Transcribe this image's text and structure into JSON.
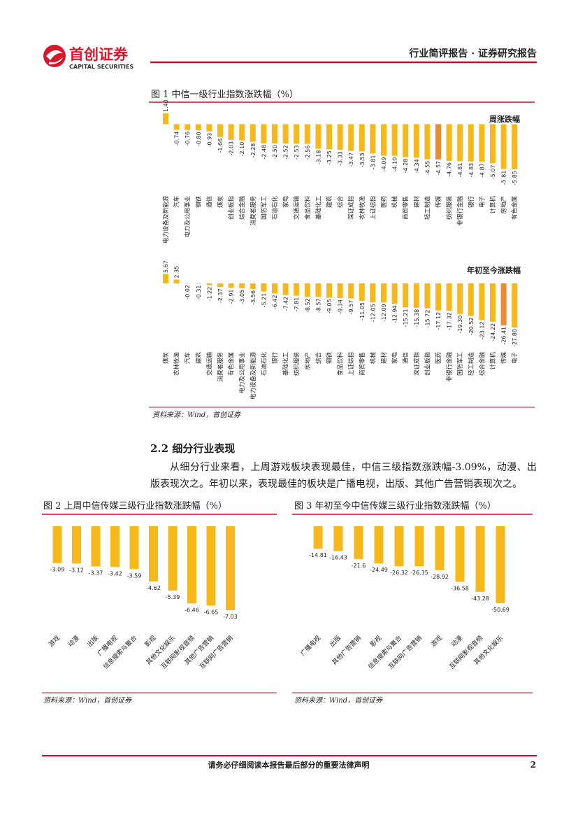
{
  "header": {
    "brand": "首创证券",
    "brand_en": "CAPITAL SECURITIES",
    "report_type": "行业简评报告 · 证券研究报告"
  },
  "figure1": {
    "title": "图 1 中信一级行业指数涨跌幅（%）",
    "source": "资料来源：Wind，首创证券"
  },
  "section": {
    "heading": "2.2  细分行业表现",
    "paragraph": "从细分行业来看，上周游戏板块表现最佳，中信三级指数涨跌幅-3.09%，动漫、出版表现次之。年初以来，表现最佳的板块是广播电视，出版、其他广告营销表现次之。"
  },
  "figure2": {
    "source": "资料来源：Wind，首创证券"
  },
  "figure3": {
    "source": "资料来源：Wind，首创证券"
  },
  "chart_data": [
    {
      "type": "bar",
      "categories": [
        "电力设备及新能源",
        "汽车",
        "电力及公用事业",
        "钢铁",
        "通信",
        "煤炭",
        "创业板指",
        "综合金融",
        "消费者服务",
        "国防军工",
        "石油石化",
        "家电",
        "交通运输",
        "食品饮料",
        "基础化工",
        "建筑",
        "综合",
        "深证成指",
        "农林牧渔",
        "上证综指",
        "医药",
        "机械",
        "商贸零售",
        "建材",
        "轻工制造",
        "传媒",
        "纺织服装",
        "非银行金融",
        "银行",
        "电子",
        "计算机",
        "房地产",
        "有色金属"
      ],
      "series": [
        {
          "name": "周涨跌幅",
          "color": "#f7b81c",
          "values": [
            1.4,
            -0.74,
            -0.76,
            -0.8,
            -0.93,
            -1.66,
            -2.03,
            -2.1,
            -2.28,
            -2.48,
            -2.5,
            -2.52,
            -2.53,
            -2.56,
            -3.18,
            -3.25,
            -3.33,
            -3.47,
            -3.53,
            -3.81,
            -4.09,
            -4.1,
            -4.28,
            -4.34,
            -4.55,
            -4.57,
            -4.76,
            -4.81,
            -4.83,
            -4.87,
            -5.07,
            -5.81,
            -5.85
          ],
          "value_labels": [
            "1.40",
            "-0.74",
            "-0.76",
            "-0.80",
            "-0.93",
            "-1.66",
            "-2.03",
            "-2.10",
            "-2.28",
            "-2.48",
            "-2.50",
            "-2.52",
            "-2.53",
            "-2.56",
            "-3.18",
            "-3.25",
            "-3.33",
            "-3.47",
            "-3.53",
            "-3.81",
            "-4.09",
            "-4.10",
            "-4.28",
            "-4.34",
            "-4.55",
            "-4.57",
            "-4.76",
            "-4.81",
            "-4.83",
            "-4.87",
            "-5.07",
            "-5.81",
            "-5.85"
          ]
        }
      ],
      "highlight": {
        "category": "传媒",
        "color": "#ef8a2e"
      }
    },
    {
      "type": "bar",
      "categories": [
        "煤炭",
        "农林牧渔",
        "汽车",
        "建筑",
        "交通运输",
        "消费者服务",
        "有色金属",
        "电力及公用事业",
        "电力设备及新能源",
        "石油石化",
        "银行",
        "基础化工",
        "纺织服装",
        "房地产",
        "综合",
        "钢铁",
        "食品饮料",
        "上证综指",
        "商贸零售",
        "机械",
        "建材",
        "家电",
        "通信",
        "深证成指",
        "创业板指",
        "医药",
        "非银行金融",
        "国防军工",
        "轻工制造",
        "综合金融",
        "计算机",
        "传媒",
        "电子"
      ],
      "series": [
        {
          "name": "年初至今涨跌幅",
          "color": "#f7b81c",
          "values": [
            5.67,
            2.35,
            -0.02,
            -0.31,
            -1.22,
            -2.37,
            -2.91,
            -3.05,
            -3.56,
            -5.21,
            -6.42,
            -7.42,
            -7.81,
            -8.52,
            -8.57,
            -9.05,
            -9.34,
            -9.57,
            -11.05,
            -12.05,
            -12.09,
            -12.94,
            -15.21,
            -15.38,
            -15.72,
            -17.12,
            -17.32,
            -19.3,
            -20.52,
            -23.12,
            -24.22,
            -26.41,
            -27.8
          ],
          "value_labels": [
            "5.67",
            "2.35",
            "-0.02",
            "-0.31",
            "-1.22",
            "-2.37",
            "-2.91",
            "-3.05",
            "-3.56",
            "-5.21",
            "-6.42",
            "-7.42",
            "-7.81",
            "-8.52",
            "-8.57",
            "-9.05",
            "-9.34",
            "-9.57",
            "-11.05",
            "-12.05",
            "-12.09",
            "-12.94",
            "-15.21",
            "-15.38",
            "-15.72",
            "-17.12",
            "-17.32",
            "-19.30",
            "-20.52",
            "-23.12",
            "-24.22",
            "-26.41",
            "-27.80"
          ]
        }
      ],
      "highlight": {
        "category": "传媒",
        "color": "#ef8a2e"
      }
    },
    {
      "type": "bar",
      "title": "图 2 上周中信传媒三级行业指数涨跌幅（%）",
      "categories": [
        "游戏",
        "动漫",
        "出版",
        "广播电视",
        "信息搜索与聚合",
        "影视",
        "其他文化娱乐",
        "互联网影视音频",
        "其他广告营销",
        "互联网广告营销"
      ],
      "series": [
        {
          "color": "#f7b81c",
          "values": [
            -3.09,
            -3.12,
            -3.37,
            -3.42,
            -3.59,
            -4.62,
            -5.39,
            -6.46,
            -6.65,
            -7.03
          ]
        }
      ]
    },
    {
      "type": "bar",
      "title": "图 3 年初至今中信传媒三级行业指数涨跌幅（%）",
      "categories": [
        "广播电视",
        "出版",
        "其他广告营销",
        "影视",
        "信息搜索与聚合",
        "互联网广告营销",
        "游戏",
        "动漫",
        "互联网影视音频",
        "其他文化娱乐"
      ],
      "series": [
        {
          "color": "#f7b81c",
          "values": [
            -14.81,
            -16.43,
            -21.6,
            -24.49,
            -26.32,
            -26.35,
            -28.92,
            -36.58,
            -43.28,
            -50.69
          ]
        }
      ]
    }
  ],
  "footer": {
    "disclaimer": "请务必仔细阅读本报告最后部分的重要法律声明",
    "page": 2
  }
}
